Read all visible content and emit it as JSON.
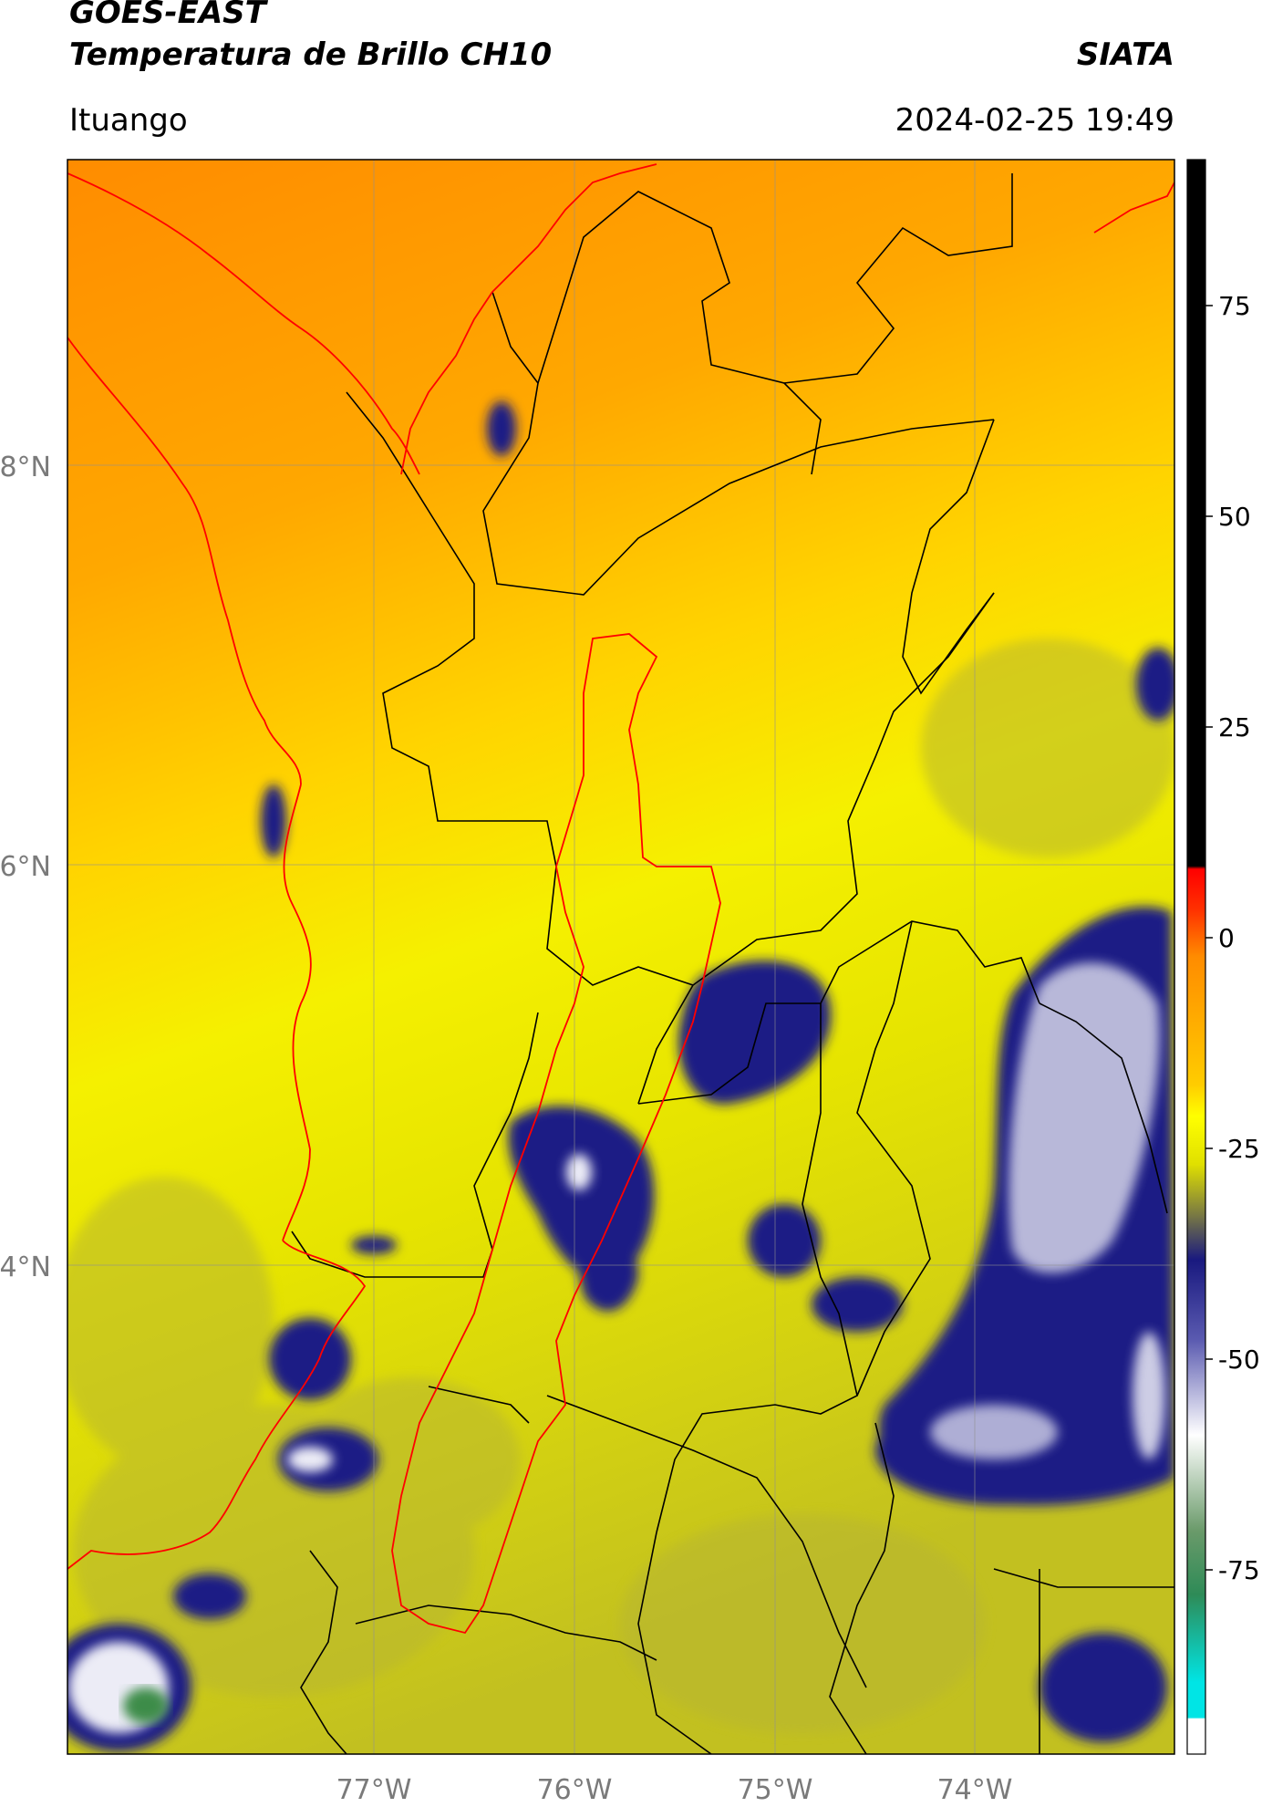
{
  "header": {
    "title_line1": "GOES-EAST",
    "title_line2": "Temperatura de Brillo CH10",
    "organization": "SIATA",
    "location": "Ituango",
    "datetime": "2024-02-25 19:49"
  },
  "map": {
    "lat_labels": [
      "8°N",
      "6°N",
      "4°N"
    ],
    "lon_labels": [
      "77°W",
      "76°W",
      "75°W",
      "74°W"
    ],
    "gridlines": true,
    "border_colors": {
      "coast_and_basin": "#ff0000",
      "departments": "#000000"
    }
  },
  "colorbar": {
    "tick_labels": [
      "75",
      "50",
      "25",
      "0",
      "-25",
      "-50",
      "-75"
    ],
    "position": "right",
    "colors": {
      "black": "#000000",
      "red": "#ff0000",
      "orange": "#ff8c00",
      "yellow": "#ffff00",
      "olive": "#7f7f3f",
      "navy": "#19197f",
      "white": "#ffffff",
      "green": "#2e8b57",
      "cyan": "#00e5e5"
    }
  }
}
